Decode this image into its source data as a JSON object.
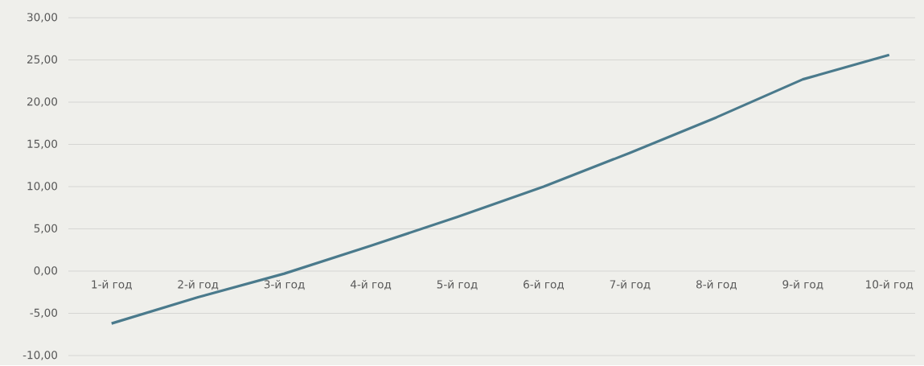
{
  "chart_data": {
    "type": "line",
    "categories": [
      "1-й год",
      "2-й год",
      "3-й год",
      "4-й год",
      "5-й год",
      "6-й год",
      "7-й год",
      "8-й год",
      "9-й год",
      "10-й год"
    ],
    "series": [
      {
        "color": "#4a7a8c",
        "values": [
          -6.2,
          -3.1,
          -0.3,
          3.0,
          6.4,
          10.0,
          14.0,
          18.2,
          22.7,
          25.6
        ]
      }
    ],
    "ylim": [
      -10,
      30
    ],
    "yticks": [
      {
        "value": -10,
        "label": "-10,00"
      },
      {
        "value": -5,
        "label": "-5,00"
      },
      {
        "value": 0,
        "label": "0,00"
      },
      {
        "value": 5,
        "label": "5,00"
      },
      {
        "value": 10,
        "label": "10,00"
      },
      {
        "value": 15,
        "label": "15,00"
      },
      {
        "value": 20,
        "label": "20,00"
      },
      {
        "value": 25,
        "label": "25,00"
      },
      {
        "value": 30,
        "label": "30,00"
      }
    ],
    "grid": "y",
    "marker": "none",
    "line_style": "solid"
  }
}
